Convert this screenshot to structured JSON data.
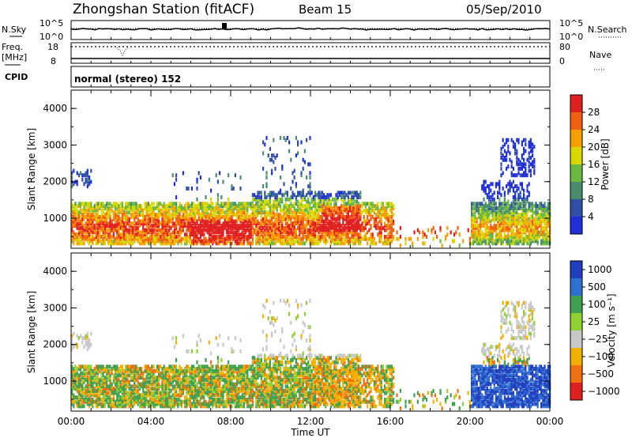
{
  "header": {
    "title": "Zhongshan Station (fitACF)",
    "beam": "Beam 15",
    "date": "05/Sep/2010"
  },
  "top_panels": {
    "nsky_label": "N.Sky",
    "nsky_ticks": [
      "10^5",
      "10^0"
    ],
    "nsearch_label": "N.Search",
    "nsearch_ticks": [
      "10^5",
      "10^0"
    ],
    "freq_label": "Freq.",
    "freq_unit": "[MHz]",
    "freq_ticks": [
      "18",
      "8"
    ],
    "nave_label": "Nave",
    "nave_ticks": [
      "80",
      "0"
    ],
    "cpid_label": "CPID",
    "cpid_text": "normal (stereo) 152"
  },
  "colors": {
    "power_scale": [
      "#2030d8",
      "#3050a8",
      "#4a8c6e",
      "#6ab840",
      "#d8d800",
      "#f5a000",
      "#f06010",
      "#e02020"
    ],
    "velocity_scale": [
      "#2040c0",
      "#3070d0",
      "#40a050",
      "#90d030",
      "#c8c8c8",
      "#f0b000",
      "#f07010",
      "#e02020"
    ],
    "gray_data": "#bbbbbb"
  },
  "chart_data": [
    {
      "type": "heatmap",
      "title": "",
      "xlabel": "",
      "ylabel": "Slant Range [km]",
      "x_ticks": [
        "00:00",
        "04:00",
        "08:00",
        "12:00",
        "16:00",
        "20:00",
        "00:00"
      ],
      "y_ticks": [
        "1000",
        "2000",
        "3000",
        "4000"
      ],
      "ylim": [
        180,
        4500
      ],
      "colorbar_label": "Power [dB]",
      "colorbar_ticks": [
        "4",
        "8",
        "12",
        "16",
        "20",
        "24",
        "28"
      ],
      "colorbar_range": [
        0,
        32
      ]
    },
    {
      "type": "heatmap",
      "title": "",
      "xlabel": "Time UT",
      "ylabel": "Slant Range [km]",
      "x_ticks": [
        "00:00",
        "04:00",
        "08:00",
        "12:00",
        "16:00",
        "20:00",
        "00:00"
      ],
      "y_ticks": [
        "1000",
        "2000",
        "3000",
        "4000"
      ],
      "ylim": [
        180,
        4500
      ],
      "colorbar_label": "Velocity [m s⁻¹]",
      "colorbar_ticks": [
        "1000",
        "500",
        "100",
        "25",
        "−25",
        "−100",
        "−500",
        "−1000"
      ]
    }
  ]
}
